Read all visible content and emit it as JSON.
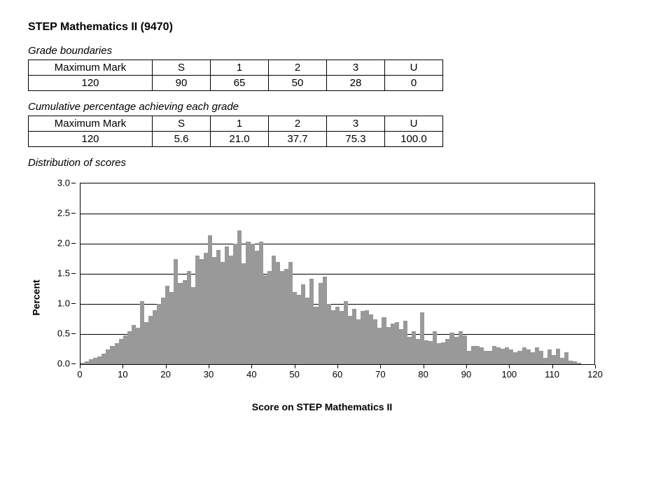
{
  "title": "STEP Mathematics II (9470)",
  "grade_boundaries": {
    "heading": "Grade boundaries",
    "header_label": "Maximum Mark",
    "value_label": "120",
    "columns": [
      "S",
      "1",
      "2",
      "3",
      "U"
    ],
    "values": [
      "90",
      "65",
      "50",
      "28",
      "0"
    ]
  },
  "cumulative": {
    "heading": "Cumulative percentage achieving each grade",
    "header_label": "Maximum Mark",
    "value_label": "120",
    "columns": [
      "S",
      "1",
      "2",
      "3",
      "U"
    ],
    "values": [
      "5.6",
      "21.0",
      "37.7",
      "75.3",
      "100.0"
    ]
  },
  "distribution": {
    "heading": "Distribution of scores",
    "chart": {
      "type": "histogram",
      "ylabel": "Percent",
      "xlabel": "Score on STEP Mathematics II",
      "ylim": [
        0,
        3.0
      ],
      "ytick_step": 0.5,
      "yticks": [
        "0.0",
        "0.5",
        "1.0",
        "1.5",
        "2.0",
        "2.5",
        "3.0"
      ],
      "xlim": [
        0,
        120
      ],
      "xtick_step": 10,
      "xticks": [
        "0",
        "10",
        "20",
        "30",
        "40",
        "50",
        "60",
        "70",
        "80",
        "90",
        "100",
        "110",
        "120"
      ],
      "bar_color": "#999999",
      "border_color": "#000000",
      "grid_color": "#000000",
      "background_color": "#ffffff",
      "values": [
        0.02,
        0.05,
        0.08,
        0.1,
        0.13,
        0.18,
        0.25,
        0.3,
        0.35,
        0.42,
        0.48,
        0.55,
        0.65,
        0.6,
        1.05,
        0.7,
        0.8,
        0.9,
        1.0,
        1.1,
        1.3,
        1.2,
        1.75,
        1.35,
        1.4,
        1.55,
        1.28,
        1.8,
        1.75,
        1.85,
        2.14,
        1.78,
        1.9,
        1.7,
        1.95,
        1.8,
        2.0,
        2.22,
        1.68,
        2.03,
        2.0,
        1.88,
        2.03,
        1.48,
        1.55,
        1.8,
        1.7,
        1.55,
        1.58,
        1.7,
        1.2,
        1.15,
        1.32,
        1.1,
        1.42,
        0.95,
        1.35,
        1.45,
        1.0,
        0.9,
        0.95,
        0.88,
        1.05,
        0.8,
        0.92,
        0.75,
        0.88,
        0.9,
        0.82,
        0.75,
        0.6,
        0.78,
        0.62,
        0.68,
        0.7,
        0.58,
        0.72,
        0.45,
        0.55,
        0.42,
        0.86,
        0.4,
        0.38,
        0.55,
        0.35,
        0.36,
        0.42,
        0.52,
        0.45,
        0.55,
        0.48,
        0.22,
        0.3,
        0.3,
        0.28,
        0.22,
        0.22,
        0.3,
        0.28,
        0.26,
        0.28,
        0.25,
        0.2,
        0.22,
        0.28,
        0.24,
        0.2,
        0.28,
        0.22,
        0.1,
        0.24,
        0.15,
        0.26,
        0.1,
        0.2,
        0.06,
        0.05,
        0.02,
        0.0,
        0.0,
        0.0
      ]
    }
  }
}
